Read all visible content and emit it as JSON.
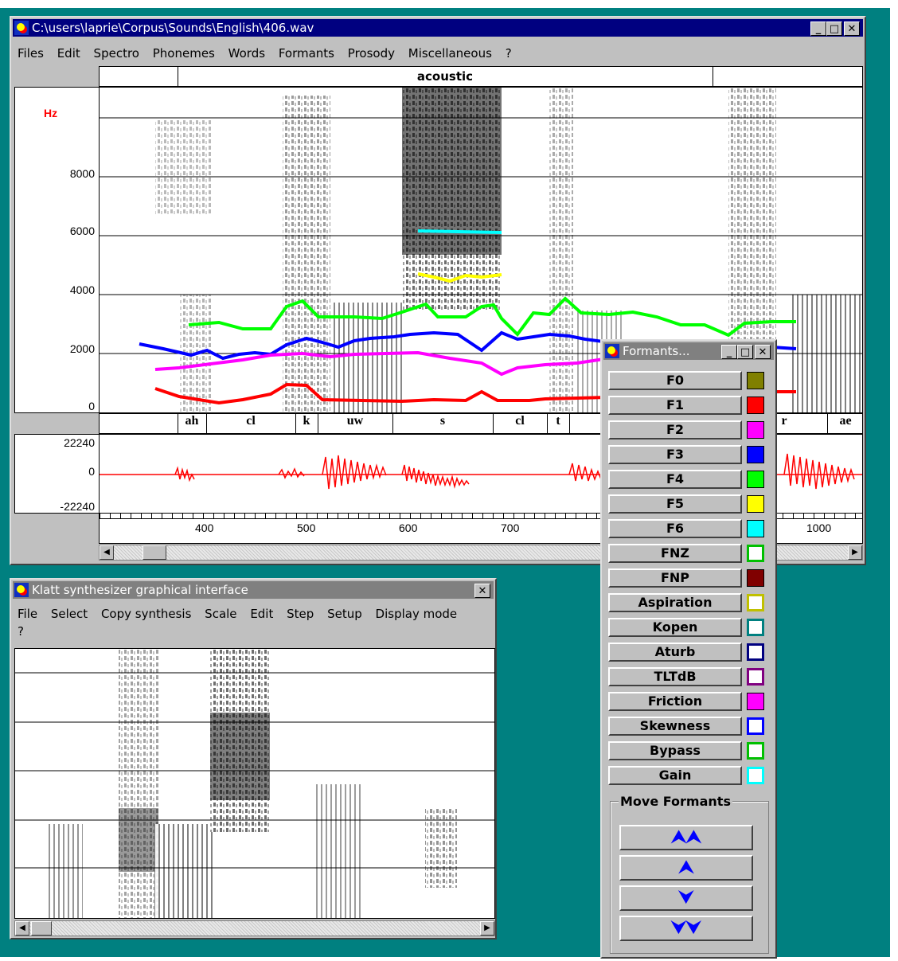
{
  "main_window": {
    "title": "C:\\users\\laprie\\Corpus\\Sounds\\English\\406.wav",
    "menu": [
      "Files",
      "Edit",
      "Spectro",
      "Phonemes",
      "Words",
      "Formants",
      "Prosody",
      "Miscellaneous",
      "?"
    ],
    "acoustic_label": "acoustic",
    "y_unit": "Hz",
    "y_ticks": [
      "8000",
      "6000",
      "4000",
      "2000",
      "0"
    ],
    "phonemes": [
      "ah",
      "cl",
      "k",
      "uw",
      "s",
      "cl",
      "t",
      "",
      "",
      "r",
      "ae"
    ],
    "wave_ticks": [
      "22240",
      "0",
      "-22240"
    ],
    "time_ticks": [
      "400",
      "500",
      "600",
      "700",
      "1000"
    ],
    "controls": {
      "minimize": "_",
      "maximize": "□",
      "close": "✕"
    }
  },
  "klatt_window": {
    "title": "Klatt synthesizer graphical interface",
    "menu": [
      "File",
      "Select",
      "Copy synthesis",
      "Scale",
      "Edit",
      "Step",
      "Setup",
      "Display mode"
    ],
    "menu_row2": "?",
    "close": "✕"
  },
  "formants_window": {
    "title": "Formants...",
    "controls": {
      "minimize": "_",
      "maximize": "□",
      "close": "✕"
    },
    "params": [
      {
        "label": "F0",
        "color": "#808000",
        "filled": true
      },
      {
        "label": "F1",
        "color": "#ff0000",
        "filled": true
      },
      {
        "label": "F2",
        "color": "#ff00ff",
        "filled": true
      },
      {
        "label": "F3",
        "color": "#0000ff",
        "filled": true
      },
      {
        "label": "F4",
        "color": "#00ff00",
        "filled": true
      },
      {
        "label": "F5",
        "color": "#ffff00",
        "filled": true
      },
      {
        "label": "F6",
        "color": "#00ffff",
        "filled": true
      },
      {
        "label": "FNZ",
        "color": "#00c000",
        "filled": false
      },
      {
        "label": "FNP",
        "color": "#800000",
        "filled": true
      },
      {
        "label": "Aspiration",
        "color": "#c0c000",
        "filled": false
      },
      {
        "label": "Kopen",
        "color": "#008080",
        "filled": false
      },
      {
        "label": "Aturb",
        "color": "#000080",
        "filled": false
      },
      {
        "label": "TLTdB",
        "color": "#800080",
        "filled": false
      },
      {
        "label": "Friction",
        "color": "#ff00ff",
        "filled": true
      },
      {
        "label": "Skewness",
        "color": "#0000ff",
        "filled": false
      },
      {
        "label": "Bypass",
        "color": "#00c000",
        "filled": false
      },
      {
        "label": "Gain",
        "color": "#00ffff",
        "filled": false
      }
    ],
    "move_group": "Move Formants",
    "move_buttons": [
      "⮝⮝",
      "⮝",
      "⮟",
      "⮟⮟"
    ]
  }
}
